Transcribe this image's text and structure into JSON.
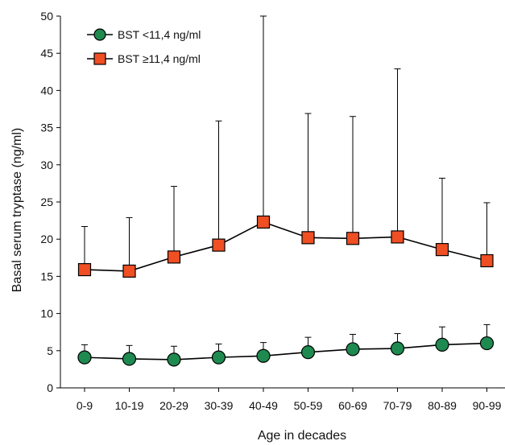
{
  "chart_data": {
    "type": "line",
    "xlabel": "Age in decades",
    "ylabel": "Basal serum tryptase (ng/ml)",
    "ylim": [
      0,
      50
    ],
    "yticks": [
      0,
      5,
      10,
      15,
      20,
      25,
      30,
      35,
      40,
      45,
      50
    ],
    "categories": [
      "0-9",
      "10-19",
      "20-29",
      "30-39",
      "40-49",
      "50-59",
      "60-69",
      "70-79",
      "80-89",
      "90-99"
    ],
    "legend_position": "top-left",
    "grid": false,
    "error_bars": "upper",
    "series": [
      {
        "name": "BST <11,4 ng/ml",
        "marker": "circle",
        "color": "#1e8a4f",
        "values": [
          4.1,
          3.9,
          3.8,
          4.1,
          4.3,
          4.8,
          5.2,
          5.3,
          5.8,
          6.0
        ],
        "error_upper": [
          5.8,
          5.7,
          5.6,
          5.9,
          6.1,
          6.8,
          7.2,
          7.3,
          8.2,
          8.5
        ]
      },
      {
        "name": "BST ≥11,4 ng/ml",
        "marker": "square",
        "color": "#f04e23",
        "values": [
          15.9,
          15.7,
          17.6,
          19.2,
          22.3,
          20.2,
          20.1,
          20.3,
          18.6,
          17.1
        ],
        "error_upper": [
          21.7,
          22.9,
          27.1,
          35.9,
          50.0,
          36.9,
          36.5,
          42.9,
          28.2,
          24.9
        ]
      }
    ]
  }
}
